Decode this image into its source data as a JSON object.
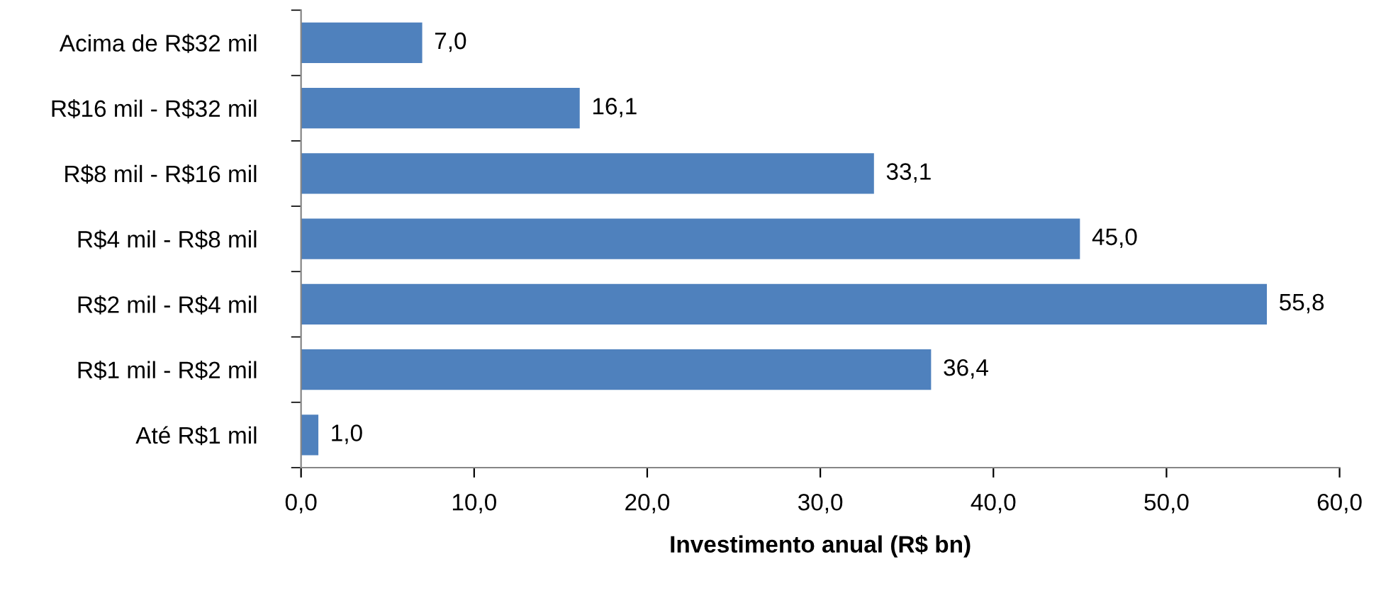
{
  "chart_data": {
    "type": "bar",
    "orientation": "horizontal",
    "xlabel": "Investimento anual (R$ bn)",
    "categories": [
      "Acima de R$32 mil",
      "R$16 mil - R$32 mil",
      "R$8 mil - R$16 mil",
      "R$4 mil - R$8 mil",
      "R$2 mil - R$4 mil",
      "R$1 mil - R$2 mil",
      "Até R$1 mil"
    ],
    "values": [
      7.0,
      16.1,
      33.1,
      45.0,
      55.8,
      36.4,
      1.0
    ],
    "value_labels": [
      "7,0",
      "16,1",
      "33,1",
      "45,0",
      "55,8",
      "36,4",
      "1,0"
    ],
    "color": "#4f81bd",
    "xlim": [
      0,
      60
    ],
    "xticks": [
      {
        "value": 0,
        "label": "0,0"
      },
      {
        "value": 10,
        "label": "10,0"
      },
      {
        "value": 20,
        "label": "20,0"
      },
      {
        "value": 30,
        "label": "30,0"
      },
      {
        "value": 40,
        "label": "40,0"
      },
      {
        "value": 50,
        "label": "50,0"
      },
      {
        "value": 60,
        "label": "60,0"
      }
    ],
    "grid": false,
    "legend": false
  }
}
